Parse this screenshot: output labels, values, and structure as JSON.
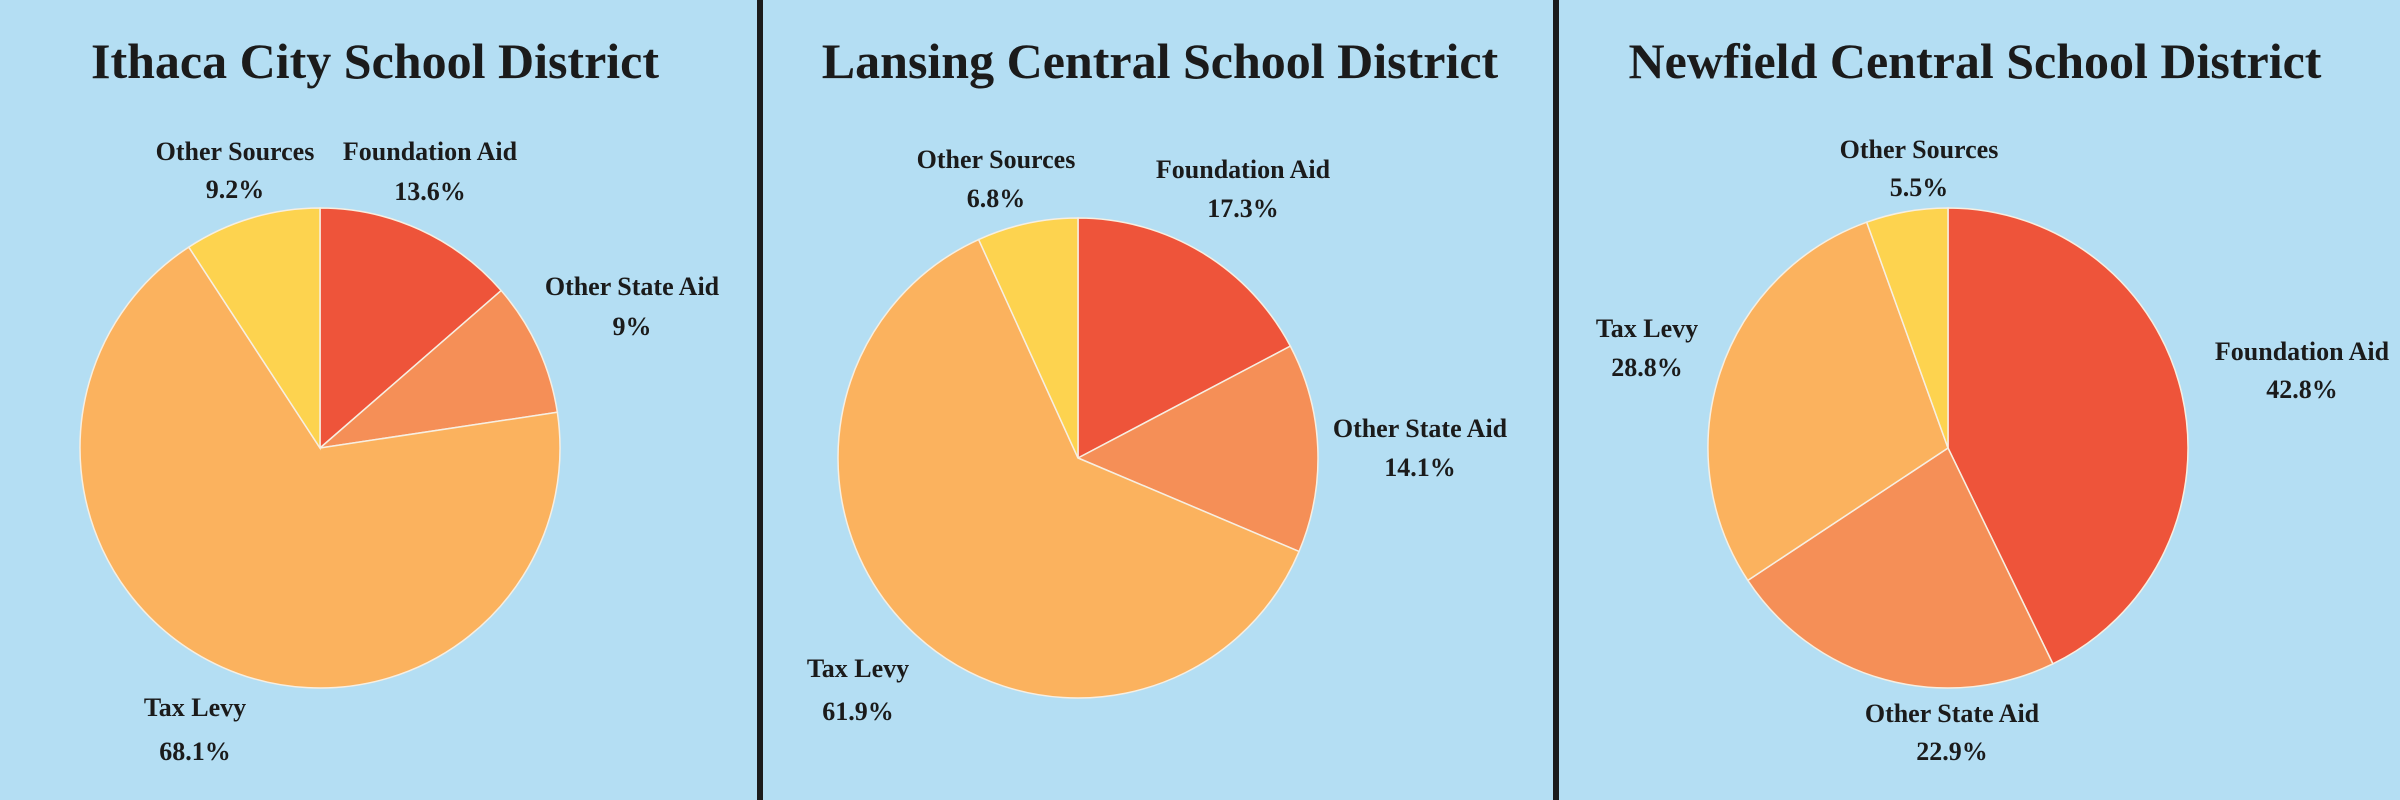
{
  "chart_data": [
    {
      "type": "pie",
      "title": "Ithaca City School District",
      "slices": [
        {
          "label": "Foundation Aid",
          "value": 13.6,
          "display": "13.6%",
          "color": "#ee543a"
        },
        {
          "label": "Other State Aid",
          "value": 9.0,
          "display": "9%",
          "color": "#f58f57"
        },
        {
          "label": "Tax Levy",
          "value": 68.1,
          "display": "68.1%",
          "color": "#fbb25e"
        },
        {
          "label": "Other Sources",
          "value": 9.2,
          "display": "9.2%",
          "color": "#fdd34f"
        }
      ]
    },
    {
      "type": "pie",
      "title": "Lansing Central School District",
      "slices": [
        {
          "label": "Foundation Aid",
          "value": 17.3,
          "display": "17.3%",
          "color": "#ee543a"
        },
        {
          "label": "Other State Aid",
          "value": 14.1,
          "display": "14.1%",
          "color": "#f58f57"
        },
        {
          "label": "Tax Levy",
          "value": 61.9,
          "display": "61.9%",
          "color": "#fbb25e"
        },
        {
          "label": "Other Sources",
          "value": 6.8,
          "display": "6.8%",
          "color": "#fdd34f"
        }
      ]
    },
    {
      "type": "pie",
      "title": "Newfield Central School District",
      "slices": [
        {
          "label": "Foundation Aid",
          "value": 42.8,
          "display": "42.8%",
          "color": "#ee543a"
        },
        {
          "label": "Other State Aid",
          "value": 22.9,
          "display": "22.9%",
          "color": "#f58f57"
        },
        {
          "label": "Tax Levy",
          "value": 28.8,
          "display": "28.8%",
          "color": "#fbb25e"
        },
        {
          "label": "Other Sources",
          "value": 5.5,
          "display": "5.5%",
          "color": "#fdd34f"
        }
      ]
    }
  ]
}
